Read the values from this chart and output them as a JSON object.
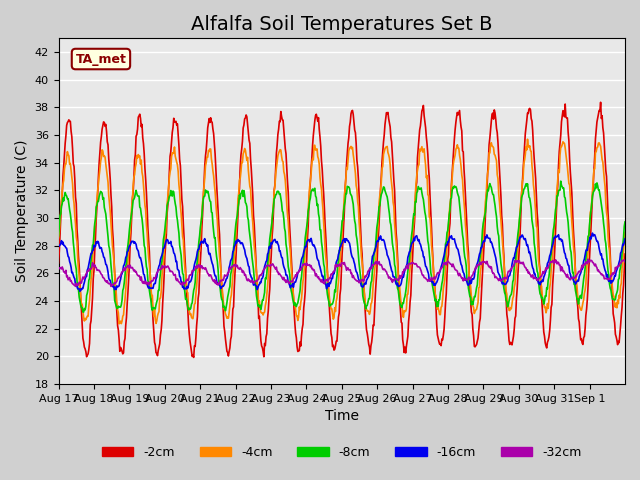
{
  "title": "Alfalfa Soil Temperatures Set B",
  "xlabel": "Time",
  "ylabel": "Soil Temperature (C)",
  "ylim": [
    18,
    43
  ],
  "yticks": [
    18,
    20,
    22,
    24,
    26,
    28,
    30,
    32,
    34,
    36,
    38,
    40,
    42
  ],
  "date_labels": [
    "Aug 17",
    "Aug 18",
    "Aug 19",
    "Aug 20",
    "Aug 21",
    "Aug 22",
    "Aug 23",
    "Aug 24",
    "Aug 25",
    "Aug 26",
    "Aug 27",
    "Aug 28",
    "Aug 29",
    "Aug 30",
    "Aug 31",
    "Sep 1"
  ],
  "annotation_text": "TA_met",
  "legend_entries": [
    "-2cm",
    "-4cm",
    "-8cm",
    "-16cm",
    "-32cm"
  ],
  "line_colors": [
    "#dd0000",
    "#ff8800",
    "#00cc00",
    "#0000ee",
    "#aa00aa"
  ],
  "bg_color": "#e8e8e8",
  "grid_color": "#ffffff",
  "title_fontsize": 14,
  "axis_label_fontsize": 10,
  "tick_fontsize": 8,
  "linewidth": 1.2
}
